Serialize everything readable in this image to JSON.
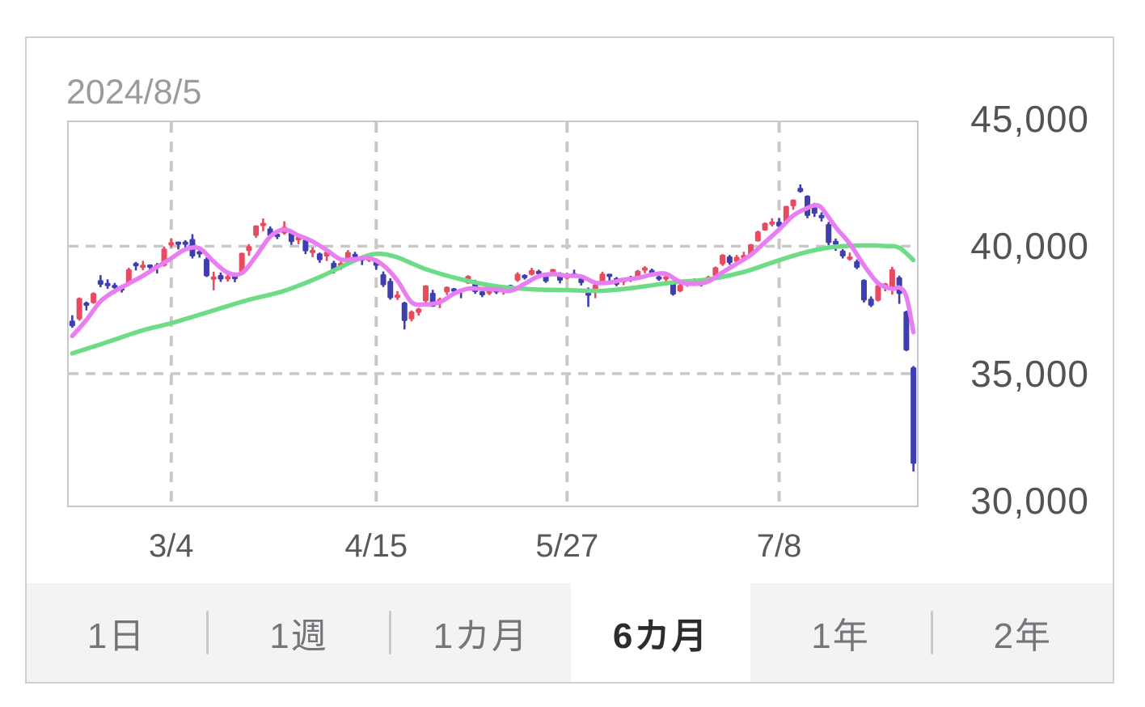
{
  "card": {
    "date_label": "2024/8/5"
  },
  "colors": {
    "candle_up": "#e84a62",
    "candle_down": "#3f3eb0",
    "ma_short": "#e87ef2",
    "ma_long": "#6edb86",
    "grid": "#c8c8c8",
    "plot_border": "#c8c8ca",
    "card_border": "#d0d0d2",
    "date_text": "#9b9b9b",
    "axis_text": "#515357",
    "tab_bar_bg": "#f3f3f4",
    "tab_text": "#747579",
    "tab_selected_bg": "#ffffff",
    "tab_selected_text": "#2b2c2e",
    "tab_divider": "#c9c9cd"
  },
  "y_axis": {
    "labels": [
      {
        "value": 45000,
        "text": "45,000"
      },
      {
        "value": 40000,
        "text": "40,000"
      },
      {
        "value": 35000,
        "text": "35,000"
      },
      {
        "value": 30000,
        "text": "30,000"
      }
    ]
  },
  "x_axis": {
    "labels": [
      {
        "index": 14,
        "text": "3/4"
      },
      {
        "index": 43,
        "text": "4/15"
      },
      {
        "index": 70,
        "text": "5/27"
      },
      {
        "index": 100,
        "text": "7/8"
      }
    ]
  },
  "tabs": [
    {
      "name": "tab-1day",
      "label": "1日",
      "selected": false
    },
    {
      "name": "tab-1week",
      "label": "1週",
      "selected": false
    },
    {
      "name": "tab-1month",
      "label": "1カ月",
      "selected": false
    },
    {
      "name": "tab-6month",
      "label": "6カ月",
      "selected": true
    },
    {
      "name": "tab-1year",
      "label": "1年",
      "selected": false
    },
    {
      "name": "tab-2year",
      "label": "2年",
      "selected": false
    }
  ],
  "chart_data": {
    "type": "candlestick",
    "title": "2024/8/5",
    "value_top": 44870,
    "value_bottom": 29820,
    "h_gridlines": [
      40000,
      35000
    ],
    "x_tick_indices": [
      14,
      43,
      70,
      100
    ],
    "x_tick_labels": [
      "3/4",
      "4/15",
      "5/27",
      "7/8"
    ],
    "y_ticks": [
      30000,
      35000,
      40000,
      45000
    ],
    "candles_format": [
      "open",
      "high",
      "low",
      "close"
    ],
    "candles": [
      [
        37080,
        37290,
        36800,
        36860
      ],
      [
        37130,
        37990,
        37080,
        37963
      ],
      [
        37750,
        37830,
        37480,
        37703
      ],
      [
        37770,
        38190,
        37740,
        38157
      ],
      [
        38670,
        38865,
        38390,
        38487
      ],
      [
        38520,
        38700,
        38330,
        38470
      ],
      [
        38480,
        38560,
        38140,
        38363
      ],
      [
        38380,
        38480,
        38180,
        38262
      ],
      [
        38490,
        39157,
        38440,
        39098
      ],
      [
        39320,
        39388,
        39050,
        39233
      ],
      [
        39180,
        39426,
        39060,
        39239
      ],
      [
        39230,
        39290,
        38950,
        39208
      ],
      [
        39260,
        39340,
        38930,
        39166
      ],
      [
        39230,
        39990,
        39200,
        39910
      ],
      [
        40080,
        40314,
        39950,
        40109
      ],
      [
        40140,
        40180,
        39870,
        40097
      ],
      [
        40150,
        40237,
        39938,
        40090
      ],
      [
        40280,
        40472,
        39518,
        39598
      ],
      [
        39800,
        39989,
        39551,
        39688
      ],
      [
        39500,
        39560,
        38790,
        38820
      ],
      [
        38700,
        39000,
        38271,
        38797
      ],
      [
        38870,
        38970,
        38600,
        38695
      ],
      [
        38720,
        38930,
        38610,
        38807
      ],
      [
        38890,
        38950,
        38588,
        38708
      ],
      [
        38990,
        39750,
        38950,
        39740
      ],
      [
        39810,
        40083,
        39620,
        40003
      ],
      [
        40410,
        40823,
        40330,
        40815
      ],
      [
        40820,
        41088,
        40590,
        40888
      ],
      [
        40700,
        40780,
        40360,
        40414
      ],
      [
        40450,
        40530,
        40280,
        40398
      ],
      [
        40500,
        40979,
        40450,
        40762
      ],
      [
        40610,
        40650,
        40054,
        40168
      ],
      [
        40230,
        40390,
        40080,
        40369
      ],
      [
        40250,
        40310,
        39690,
        39803
      ],
      [
        39750,
        39960,
        39570,
        39838
      ],
      [
        39720,
        39750,
        39350,
        39451
      ],
      [
        39600,
        39810,
        39420,
        39773
      ],
      [
        39350,
        39430,
        38930,
        38992
      ],
      [
        39120,
        39420,
        39070,
        39347
      ],
      [
        39450,
        39850,
        39430,
        39773
      ],
      [
        39690,
        39780,
        39430,
        39581
      ],
      [
        39550,
        39600,
        39260,
        39442
      ],
      [
        39450,
        39660,
        39380,
        39523
      ],
      [
        39380,
        39490,
        39070,
        39232
      ],
      [
        38900,
        39010,
        38400,
        38471
      ],
      [
        38640,
        38740,
        37900,
        37961
      ],
      [
        37990,
        38240,
        37890,
        38079
      ],
      [
        37790,
        37820,
        36733,
        37068
      ],
      [
        37130,
        37480,
        37050,
        37438
      ],
      [
        37390,
        37580,
        37280,
        37552
      ],
      [
        37840,
        38470,
        37800,
        38460
      ],
      [
        38170,
        38290,
        37620,
        37628
      ],
      [
        37790,
        37982,
        37570,
        37934
      ],
      [
        38190,
        38420,
        38090,
        38405
      ],
      [
        38290,
        38360,
        38140,
        38274
      ],
      [
        38290,
        38340,
        37960,
        38236
      ],
      [
        38540,
        38860,
        38520,
        38835
      ],
      [
        38600,
        38680,
        38130,
        38202
      ],
      [
        38230,
        38340,
        38000,
        38073
      ],
      [
        38180,
        38420,
        38080,
        38229
      ],
      [
        38340,
        38440,
        38120,
        38179
      ],
      [
        38200,
        38420,
        38100,
        38356
      ],
      [
        38440,
        38490,
        38300,
        38385
      ],
      [
        38650,
        38980,
        38600,
        38920
      ],
      [
        38830,
        38900,
        38690,
        38787
      ],
      [
        38880,
        39150,
        38850,
        39069
      ],
      [
        38990,
        39080,
        38810,
        38946
      ],
      [
        38840,
        38900,
        38560,
        38617
      ],
      [
        38950,
        39110,
        38880,
        39103
      ],
      [
        38900,
        38980,
        38540,
        38646
      ],
      [
        38740,
        38960,
        38710,
        38900
      ],
      [
        38890,
        39080,
        38770,
        38855
      ],
      [
        38740,
        38790,
        38460,
        38556
      ],
      [
        38320,
        38380,
        37617,
        38054
      ],
      [
        38180,
        38520,
        37960,
        38487
      ],
      [
        38580,
        39000,
        38540,
        38923
      ],
      [
        38880,
        38920,
        38560,
        38837
      ],
      [
        38750,
        38790,
        38430,
        38490
      ],
      [
        38590,
        38760,
        38470,
        38703
      ],
      [
        38750,
        38840,
        38600,
        38683
      ],
      [
        38800,
        39070,
        38780,
        39038
      ],
      [
        39070,
        39220,
        38940,
        39134
      ],
      [
        39070,
        39120,
        38820,
        38876
      ],
      [
        38790,
        38890,
        38640,
        38720
      ],
      [
        38690,
        38900,
        38550,
        38814
      ],
      [
        38540,
        38600,
        38060,
        38102
      ],
      [
        38230,
        38530,
        38200,
        38482
      ],
      [
        38520,
        38680,
        38410,
        38570
      ],
      [
        38570,
        38740,
        38470,
        38633
      ],
      [
        38680,
        38730,
        38420,
        38596
      ],
      [
        38650,
        38840,
        38570,
        38804
      ],
      [
        38830,
        39200,
        38820,
        39173
      ],
      [
        39290,
        39690,
        39230,
        39667
      ],
      [
        39600,
        39660,
        39270,
        39341
      ],
      [
        39390,
        39660,
        39330,
        39583
      ],
      [
        39560,
        39780,
        39430,
        39631
      ],
      [
        39670,
        40090,
        39650,
        40074
      ],
      [
        40190,
        40610,
        40180,
        40580
      ],
      [
        40620,
        40930,
        40610,
        40913
      ],
      [
        40910,
        41100,
        40780,
        40912
      ],
      [
        40960,
        41110,
        40750,
        40780
      ],
      [
        40960,
        41590,
        40940,
        41580
      ],
      [
        41570,
        41840,
        41430,
        41831
      ],
      [
        42290,
        42426,
        42100,
        42130
      ],
      [
        41980,
        42000,
        41100,
        41190
      ],
      [
        41640,
        41700,
        41150,
        41275
      ],
      [
        41230,
        41330,
        40970,
        41097
      ],
      [
        40870,
        40950,
        40040,
        40126
      ],
      [
        40210,
        40300,
        39820,
        40063
      ],
      [
        39830,
        39890,
        39520,
        39599
      ],
      [
        39480,
        39750,
        39430,
        39594
      ],
      [
        39410,
        39480,
        39100,
        39154
      ],
      [
        38680,
        38700,
        37790,
        37869
      ],
      [
        37940,
        38030,
        37611,
        37667
      ],
      [
        37860,
        38500,
        37830,
        38468
      ],
      [
        38430,
        38560,
        38230,
        38525
      ],
      [
        38310,
        39190,
        38100,
        39101
      ],
      [
        38780,
        38844,
        37737,
        38126
      ],
      [
        37440,
        37470,
        35880,
        35909
      ],
      [
        35250,
        35300,
        31156,
        31458
      ]
    ],
    "series": [
      {
        "name": "ma-long-green",
        "color": "#6edb86",
        "points": [
          [
            0,
            35793
          ],
          [
            5,
            36240
          ],
          [
            10,
            36700
          ],
          [
            14,
            36980
          ],
          [
            20,
            37480
          ],
          [
            25,
            37900
          ],
          [
            30,
            38250
          ],
          [
            35,
            38790
          ],
          [
            40,
            39440
          ],
          [
            43,
            39700
          ],
          [
            46,
            39560
          ],
          [
            50,
            39100
          ],
          [
            55,
            38700
          ],
          [
            60,
            38430
          ],
          [
            65,
            38310
          ],
          [
            70,
            38280
          ],
          [
            75,
            38250
          ],
          [
            80,
            38390
          ],
          [
            85,
            38580
          ],
          [
            90,
            38700
          ],
          [
            95,
            38990
          ],
          [
            100,
            39450
          ],
          [
            104,
            39780
          ],
          [
            108,
            39980
          ],
          [
            112,
            40030
          ],
          [
            115,
            40010
          ],
          [
            117,
            39940
          ],
          [
            119,
            39450
          ]
        ]
      },
      {
        "name": "ma-short-pink",
        "color": "#e87ef2",
        "points": [
          [
            0,
            36475
          ],
          [
            2,
            37106
          ],
          [
            4,
            37838
          ],
          [
            6,
            38236
          ],
          [
            8,
            38536
          ],
          [
            10,
            38839
          ],
          [
            12,
            39189
          ],
          [
            14,
            39526
          ],
          [
            16,
            39874
          ],
          [
            18,
            39916
          ],
          [
            20,
            39399
          ],
          [
            22,
            38961
          ],
          [
            24,
            38949
          ],
          [
            26,
            39615
          ],
          [
            28,
            40372
          ],
          [
            30,
            40655
          ],
          [
            32,
            40422
          ],
          [
            34,
            40188
          ],
          [
            36,
            39847
          ],
          [
            38,
            39480
          ],
          [
            40,
            39493
          ],
          [
            42,
            39533
          ],
          [
            44,
            39250
          ],
          [
            46,
            38653
          ],
          [
            48,
            37803
          ],
          [
            50,
            37719
          ],
          [
            52,
            37802
          ],
          [
            54,
            38140
          ],
          [
            56,
            38337
          ],
          [
            58,
            38324
          ],
          [
            60,
            38304
          ],
          [
            62,
            38244
          ],
          [
            64,
            38525
          ],
          [
            66,
            38821
          ],
          [
            68,
            38904
          ],
          [
            70,
            38842
          ],
          [
            72,
            38812
          ],
          [
            74,
            38570
          ],
          [
            76,
            38571
          ],
          [
            78,
            38688
          ],
          [
            80,
            38750
          ],
          [
            82,
            38887
          ],
          [
            84,
            38916
          ],
          [
            86,
            38599
          ],
          [
            88,
            38520
          ],
          [
            90,
            38617
          ],
          [
            92,
            38975
          ],
          [
            94,
            39314
          ],
          [
            96,
            39659
          ],
          [
            98,
            40156
          ],
          [
            100,
            40652
          ],
          [
            102,
            41203
          ],
          [
            104,
            41502
          ],
          [
            105,
            41601
          ],
          [
            106,
            41505
          ],
          [
            108,
            40750
          ],
          [
            110,
            40096
          ],
          [
            112,
            39256
          ],
          [
            114,
            38550
          ],
          [
            116,
            38326
          ],
          [
            117,
            38377
          ],
          [
            118,
            38026
          ],
          [
            119,
            36624
          ]
        ]
      }
    ]
  }
}
